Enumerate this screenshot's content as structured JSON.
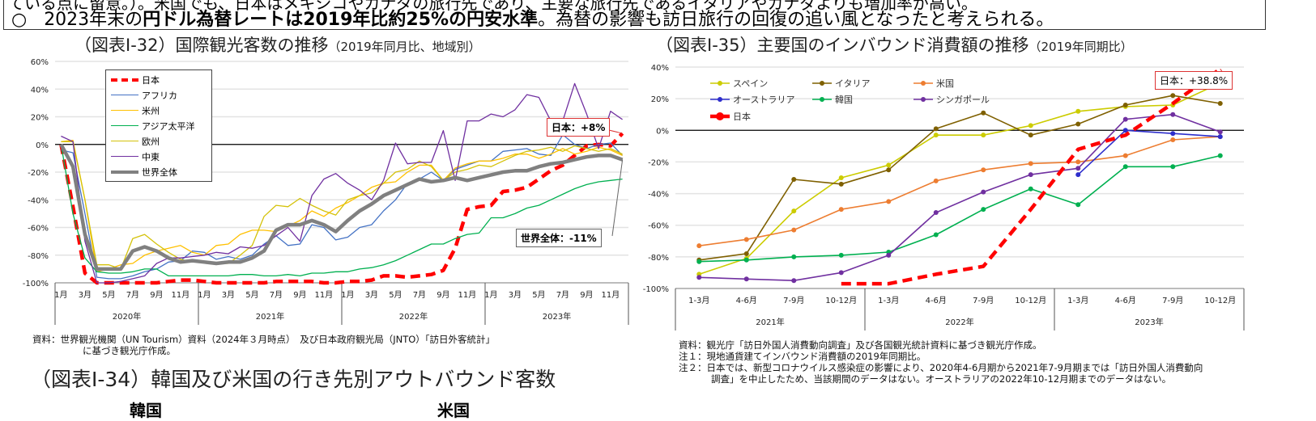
{
  "header": {
    "cut_line": "ている点に留意。）。米国でも、日本はメキシコやカナダの旅行先であり、主要な旅行先であるイタリアやカナダよりも増加率が高い。",
    "bullet_symbol": "○",
    "bullet_pre": "2023年末の",
    "bullet_bold": "円ドル為替レートは2019年比約25%の円安水準",
    "bullet_post": "。為替の影響も訪日旅行の回復の追い風となったと考えられる。"
  },
  "chart_data": [
    {
      "type": "line",
      "title": "（図表Ⅰ-32）国際観光客数の推移",
      "subtitle": "（2019年同月比、地域別）",
      "ylim": [
        -100,
        60
      ],
      "yticks": [
        "60%",
        "40%",
        "20%",
        "0%",
        "-20%",
        "-40%",
        "-60%",
        "-80%",
        "-100%"
      ],
      "month_labels": [
        "1月",
        "3月",
        "5月",
        "7月",
        "9月",
        "11月"
      ],
      "years": [
        "2020年",
        "2021年",
        "2022年",
        "2023年"
      ],
      "grid": true,
      "legend_placement": "top-left",
      "series": [
        {
          "name": "日本",
          "color": "#ff0000",
          "style": "dashed-thick",
          "values": [
            0,
            -45,
            -93,
            -100,
            -100,
            -100,
            -100,
            -100,
            -100,
            -99,
            -98,
            -98,
            -99,
            -100,
            -100,
            -100,
            -100,
            -100,
            -99,
            -99,
            -99,
            -99,
            -100,
            -100,
            -99,
            -99,
            -98,
            -95,
            -95,
            -96,
            -95,
            -94,
            -91,
            -75,
            -47,
            -45,
            -44,
            -34,
            -33,
            -31,
            -25,
            -19,
            -15,
            -8,
            -1,
            0,
            -1,
            8
          ]
        },
        {
          "name": "アフリカ",
          "color": "#4472c4",
          "style": "thin",
          "values": [
            -4,
            -6,
            -50,
            -96,
            -97,
            -97,
            -95,
            -92,
            -90,
            -85,
            -84,
            -77,
            -78,
            -83,
            -81,
            -83,
            -80,
            -72,
            -66,
            -73,
            -72,
            -58,
            -60,
            -69,
            -67,
            -60,
            -58,
            -48,
            -40,
            -28,
            -25,
            -20,
            -26,
            -18,
            -15,
            -12,
            -12,
            -5,
            -4,
            -3,
            -7,
            -8,
            7,
            0,
            -3,
            0,
            1,
            -8
          ]
        },
        {
          "name": "米州",
          "color": "#ffc000",
          "style": "thin",
          "values": [
            2,
            3,
            -40,
            -92,
            -90,
            -87,
            -86,
            -80,
            -77,
            -75,
            -73,
            -78,
            -80,
            -73,
            -72,
            -65,
            -62,
            -62,
            -63,
            -59,
            -55,
            -48,
            -52,
            -46,
            -42,
            -37,
            -31,
            -28,
            -27,
            -20,
            -15,
            -15,
            -26,
            -17,
            -14,
            -12,
            -12,
            -10,
            -7,
            -7,
            -10,
            -7,
            -3,
            -7,
            -5,
            -2,
            -4,
            -8
          ]
        },
        {
          "name": "アジア太平洋",
          "color": "#00b050",
          "style": "thin",
          "values": [
            0,
            -50,
            -82,
            -92,
            -93,
            -93,
            -92,
            -90,
            -90,
            -95,
            -95,
            -95,
            -95,
            -95,
            -95,
            -94,
            -94,
            -95,
            -95,
            -94,
            -95,
            -93,
            -93,
            -92,
            -92,
            -90,
            -89,
            -87,
            -84,
            -80,
            -76,
            -72,
            -72,
            -68,
            -65,
            -64,
            -53,
            -53,
            -50,
            -46,
            -44,
            -40,
            -36,
            -32,
            -29,
            -27,
            -26,
            -25
          ]
        },
        {
          "name": "欧州",
          "color": "#d4c20a",
          "style": "thin",
          "values": [
            2,
            2,
            -40,
            -87,
            -87,
            -90,
            -68,
            -65,
            -72,
            -78,
            -83,
            -85,
            -85,
            -86,
            -86,
            -80,
            -73,
            -52,
            -44,
            -45,
            -39,
            -44,
            -48,
            -51,
            -40,
            -37,
            -35,
            -28,
            -20,
            -18,
            -12,
            -16,
            -26,
            -20,
            -18,
            -15,
            -16,
            -12,
            -8,
            -5,
            -4,
            -2,
            -5,
            -1,
            -3,
            -5,
            -3,
            -7
          ]
        },
        {
          "name": "中東",
          "color": "#7030a0",
          "style": "thin",
          "values": [
            6,
            2,
            -70,
            -100,
            -100,
            -99,
            -97,
            -95,
            -86,
            -82,
            -82,
            -81,
            -80,
            -78,
            -79,
            -74,
            -75,
            -73,
            -66,
            -60,
            -70,
            -37,
            -25,
            -21,
            -28,
            -33,
            -40,
            -26,
            1,
            -14,
            -13,
            -13,
            10,
            -26,
            17,
            17,
            22,
            20,
            25,
            36,
            34,
            17,
            17,
            44,
            22,
            -3,
            24,
            18
          ]
        },
        {
          "name": "世界全体",
          "color": "#808080",
          "style": "thick",
          "values": [
            0,
            -16,
            -65,
            -90,
            -90,
            -90,
            -77,
            -74,
            -77,
            -82,
            -85,
            -84,
            -85,
            -86,
            -85,
            -85,
            -82,
            -77,
            -62,
            -58,
            -58,
            -55,
            -58,
            -63,
            -55,
            -48,
            -43,
            -37,
            -33,
            -29,
            -25,
            -27,
            -26,
            -24,
            -26,
            -24,
            -22,
            -20,
            -19,
            -19,
            -16,
            -14,
            -13,
            -11,
            -9,
            -8,
            -8,
            -11
          ]
        }
      ],
      "annotations": {
        "japan": "日本：+8%",
        "world": "世界全体：-11%"
      },
      "source_line1": "資料：世界観光機関（UN Tourism）資料（2024年３月時点）　及び日本政府観光局（JNTO）「訪日外客統計」",
      "source_line2": "に基づき観光庁作成。"
    },
    {
      "type": "line",
      "title": "（図表Ⅰ-35）主要国のインバウンド消費額の推移",
      "subtitle": "（2019年同期比）",
      "ylim": [
        -100,
        40
      ],
      "yticks": [
        "40%",
        "20%",
        "0%",
        "-20%",
        "-40%",
        "-60%",
        "-80%",
        "-100%"
      ],
      "quarter_labels": [
        "1-3月",
        "4-6月",
        "7-9月",
        "10-12月"
      ],
      "years": [
        "2021年",
        "2022年",
        "2023年"
      ],
      "grid": true,
      "legend_placement": "top-left",
      "series": [
        {
          "name": "スペイン",
          "color": "#cccc00",
          "style": "marker",
          "values": [
            -91,
            -81,
            -51,
            -30,
            -22,
            -3,
            -3,
            3,
            12,
            15,
            16,
            30
          ]
        },
        {
          "name": "イタリア",
          "color": "#7f6000",
          "style": "marker",
          "values": [
            -82,
            -78,
            -31,
            -34,
            -25,
            1,
            11,
            -3,
            4,
            16,
            22,
            17
          ]
        },
        {
          "name": "米国",
          "color": "#ed7d31",
          "style": "marker",
          "values": [
            -73,
            -69,
            -63,
            -50,
            -45,
            -32,
            -25,
            -21,
            -20,
            -16,
            -6,
            -4
          ]
        },
        {
          "name": "オーストラリア",
          "color": "#2e2ecc",
          "style": "marker",
          "values": [
            null,
            null,
            null,
            null,
            null,
            null,
            null,
            null,
            -28,
            0,
            -2,
            -4
          ]
        },
        {
          "name": "韓国",
          "color": "#00b050",
          "style": "marker",
          "values": [
            -83,
            -82,
            -80,
            -79,
            -77,
            -66,
            -50,
            -37,
            -47,
            -23,
            -23,
            -16
          ]
        },
        {
          "name": "シンガポール",
          "color": "#7030a0",
          "style": "marker",
          "values": [
            -93,
            -94,
            -95,
            -90,
            -79,
            -52,
            -39,
            -28,
            -24,
            7,
            10,
            -1
          ]
        },
        {
          "name": "日本",
          "color": "#ff0000",
          "style": "dashed-thick",
          "values": [
            null,
            null,
            null,
            -97,
            -97,
            -91,
            -86,
            -50,
            -12,
            -3,
            17,
            38.8
          ]
        }
      ],
      "annotations": {
        "japan": "日本：+38.8%"
      },
      "source_line1": "資料：観光庁「訪日外国人消費動向調査」及び各国観光統計資料に基づき観光庁作成。",
      "note1": "注１：現地通貨建てインバウンド消費額の2019年同期比。",
      "note2a": "注２：日本では、新型コロナウイルス感染症の影響により、2020年4-6月期から2021年7-9月期までは「訪日外国人消費動向",
      "note2b": "調査」を中止したため、当該期間のデータはない。オーストラリアの2022年10-12月期までのデータはない。"
    }
  ],
  "next_section": {
    "title": "（図表Ⅰ-34）韓国及び米国の行き先別アウトバウンド客数",
    "left_label": "韓国",
    "right_label": "米国"
  }
}
